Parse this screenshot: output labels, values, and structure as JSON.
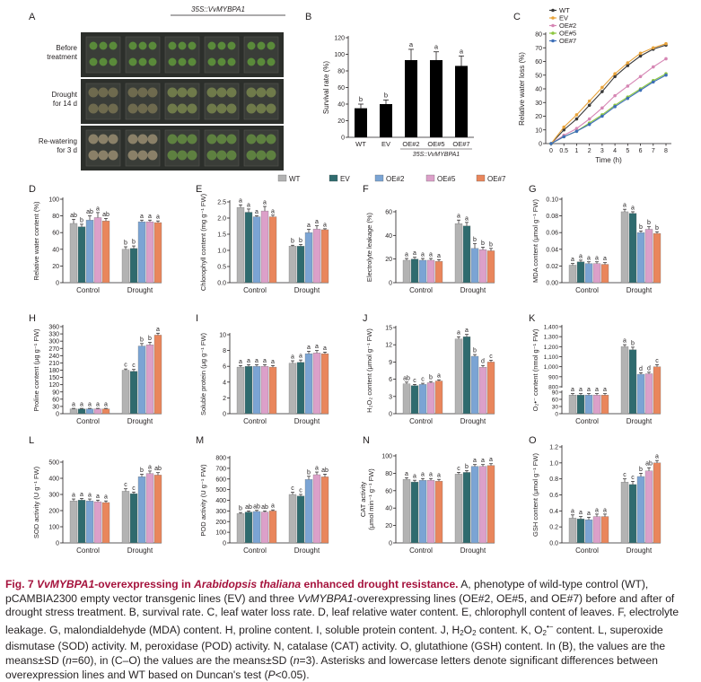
{
  "panel_a": {
    "letter": "A",
    "columns": [
      "WT",
      "EV",
      "OE#2",
      "OE#5",
      "OE#7"
    ],
    "transgene_label": "35S::VvMYBPA1",
    "rows": [
      "Before treatment",
      "Drought for 14 d",
      "Re-watering for 3 d"
    ]
  },
  "legend": {
    "series": [
      "WT",
      "EV",
      "OE#2",
      "OE#5",
      "OE#7"
    ],
    "colors": [
      "#b3b3b3",
      "#2f6b6e",
      "#7ba4d4",
      "#dca0c9",
      "#e9865c"
    ]
  },
  "chart_data": [
    {
      "letter": "B",
      "type": "bar",
      "categories": [
        "WT",
        "EV",
        "OE#2",
        "OE#5",
        "OE#7"
      ],
      "values": [
        35,
        40,
        93,
        93,
        86
      ],
      "errors": [
        5,
        5,
        13,
        10,
        12
      ],
      "letters": [
        "b",
        "b",
        "a",
        "a",
        "a"
      ],
      "ylabel": "Survival rate (%)",
      "ylim": [
        0,
        120
      ],
      "yticks": [
        "0",
        "20",
        "40",
        "60",
        "80",
        "100",
        "120"
      ],
      "group_label": "35S::VvMYBPA1",
      "bar_color": "#000000"
    },
    {
      "letter": "C",
      "type": "line",
      "x": [
        "0",
        "0.5",
        "1",
        "2",
        "3",
        "4",
        "5",
        "6",
        "7",
        "8"
      ],
      "xlabel": "Time (h)",
      "ylabel": "Relative water loss (%)",
      "ylim": [
        0,
        80
      ],
      "yticks": [
        "0",
        "10",
        "20",
        "30",
        "40",
        "50",
        "60",
        "70",
        "80"
      ],
      "series": [
        {
          "name": "WT",
          "color": "#3a3a3a",
          "values": [
            0,
            10,
            18,
            28,
            38,
            49,
            57,
            64,
            69,
            72
          ]
        },
        {
          "name": "EV",
          "color": "#e8a33a",
          "values": [
            0,
            12,
            21,
            31,
            41,
            51,
            59,
            66,
            70,
            73
          ]
        },
        {
          "name": "OE#2",
          "color": "#d686b4",
          "values": [
            0,
            6,
            11,
            18,
            26,
            35,
            42,
            49,
            56,
            62
          ]
        },
        {
          "name": "OE#5",
          "color": "#8cc63f",
          "values": [
            0,
            5,
            9,
            15,
            21,
            28,
            34,
            40,
            46,
            51
          ]
        },
        {
          "name": "OE#7",
          "color": "#3d6fb8",
          "values": [
            0,
            5,
            9,
            14,
            20,
            27,
            33,
            39,
            45,
            50
          ]
        }
      ]
    },
    {
      "letter": "D",
      "type": "bar",
      "ylabel": "Relative water content (%)",
      "ylim": [
        0,
        100
      ],
      "yticks": [
        "0",
        "20",
        "40",
        "60",
        "80",
        "100"
      ],
      "categories": [
        "Control",
        "Drought"
      ],
      "values": [
        [
          71,
          67,
          75,
          78,
          74
        ],
        [
          40,
          41,
          73,
          73,
          72
        ]
      ],
      "errors": [
        [
          5,
          3,
          5,
          6,
          3
        ],
        [
          3,
          3,
          2,
          2,
          2
        ]
      ],
      "letters": [
        [
          "ab",
          "b",
          "ab",
          "a",
          "ab"
        ],
        [
          "b",
          "b",
          "a",
          "a",
          "a"
        ]
      ]
    },
    {
      "letter": "E",
      "type": "bar",
      "ylabel": "Chlorophyll content (mg g⁻¹ FW)",
      "ylim": [
        0,
        2.5
      ],
      "yticks": [
        "0.0",
        "0.5",
        "1.0",
        "1.5",
        "2.0",
        "2.5"
      ],
      "categories": [
        "Control",
        "Drought"
      ],
      "values": [
        [
          2.33,
          2.18,
          2.04,
          2.22,
          2.04
        ],
        [
          1.13,
          1.13,
          1.55,
          1.66,
          1.64
        ]
      ],
      "errors": [
        [
          0.08,
          0.1,
          0.03,
          0.14,
          0.05
        ],
        [
          0.03,
          0.05,
          0.1,
          0.1,
          0.03
        ]
      ],
      "letters": [
        [
          "a",
          "a",
          "a",
          "a",
          "a"
        ],
        [
          "b",
          "b",
          "a",
          "a",
          "a"
        ]
      ]
    },
    {
      "letter": "F",
      "type": "bar",
      "ylabel": "Electrolyte leakage (%)",
      "ylim": [
        0,
        60
      ],
      "yticks": [
        "0",
        "20",
        "40",
        "60"
      ],
      "categories": [
        "Control",
        "Drought"
      ],
      "values": [
        [
          19,
          20,
          19,
          19,
          18
        ],
        [
          50,
          48,
          29,
          28,
          27
        ]
      ],
      "errors": [
        [
          1.5,
          1.5,
          1.5,
          1.5,
          1.5
        ],
        [
          3,
          3,
          4,
          2,
          2
        ]
      ],
      "letters": [
        [
          "a",
          "a",
          "a",
          "a",
          "a"
        ],
        [
          "a",
          "a",
          "b",
          "b",
          "b"
        ]
      ]
    },
    {
      "letter": "G",
      "type": "bar",
      "ylabel": "MDA content (μmol g⁻¹ FW)",
      "ylim": [
        0,
        0.1
      ],
      "yticks": [
        "0.00",
        "0.02",
        "0.04",
        "0.06",
        "0.08",
        "0.10"
      ],
      "categories": [
        "Control",
        "Drought"
      ],
      "values": [
        [
          0.021,
          0.025,
          0.023,
          0.023,
          0.022
        ],
        [
          0.085,
          0.083,
          0.06,
          0.064,
          0.059
        ]
      ],
      "errors": [
        [
          0.002,
          0.002,
          0.002,
          0.002,
          0.002
        ],
        [
          0.003,
          0.002,
          0.002,
          0.003,
          0.002
        ]
      ],
      "letters": [
        [
          "a",
          "a",
          "a",
          "a",
          "a"
        ],
        [
          "a",
          "a",
          "b",
          "b",
          "b"
        ]
      ]
    },
    {
      "letter": "H",
      "type": "bar",
      "ylabel": "Proline content (μg g⁻¹ FW)",
      "ylim": [
        0,
        360
      ],
      "yticks": [
        "0",
        "30",
        "60",
        "90",
        "120",
        "150",
        "180",
        "210",
        "240",
        "270",
        "300",
        "330",
        "360"
      ],
      "categories": [
        "Control",
        "Drought"
      ],
      "values": [
        [
          20,
          20,
          20,
          20,
          20
        ],
        [
          180,
          175,
          280,
          285,
          325
        ]
      ],
      "errors": [
        [
          2,
          2,
          2,
          2,
          2
        ],
        [
          5,
          8,
          10,
          10,
          8
        ]
      ],
      "letters": [
        [
          "a",
          "a",
          "a",
          "a",
          "a"
        ],
        [
          "c",
          "c",
          "b",
          "b",
          "a"
        ]
      ]
    },
    {
      "letter": "I",
      "type": "bar",
      "ylabel": "Soluble protein (μg g⁻¹ FW)",
      "ylim": [
        0,
        10
      ],
      "yticks": [
        "0",
        "2",
        "4",
        "6",
        "8",
        "10"
      ],
      "categories": [
        "Control",
        "Drought"
      ],
      "values": [
        [
          5.9,
          6.0,
          6.0,
          6.0,
          5.9
        ],
        [
          6.4,
          6.5,
          7.6,
          7.7,
          7.6
        ]
      ],
      "errors": [
        [
          0.2,
          0.2,
          0.2,
          0.2,
          0.2
        ],
        [
          0.3,
          0.3,
          0.3,
          0.3,
          0.2
        ]
      ],
      "letters": [
        [
          "a",
          "a",
          "a",
          "a",
          "a"
        ],
        [
          "a",
          "a",
          "a",
          "a",
          "a"
        ]
      ]
    },
    {
      "letter": "J",
      "type": "bar",
      "ylabel": "H₂O₂ content (μmol g⁻¹ FW)",
      "ylim": [
        0,
        15
      ],
      "yticks": [
        "0",
        "3",
        "6",
        "9",
        "12",
        "15"
      ],
      "categories": [
        "Control",
        "Drought"
      ],
      "values": [
        [
          5.2,
          4.9,
          5.1,
          5.4,
          5.7
        ],
        [
          13.0,
          13.4,
          10.0,
          8.1,
          9.0
        ]
      ],
      "errors": [
        [
          0.3,
          0.2,
          0.2,
          0.2,
          0.2
        ],
        [
          0.4,
          0.4,
          0.3,
          0.3,
          0.3
        ]
      ],
      "letters": [
        [
          "ab",
          "c",
          "c",
          "b",
          "a"
        ],
        [
          "a",
          "a",
          "b",
          "d",
          "c"
        ]
      ]
    },
    {
      "letter": "K",
      "type": "bar",
      "ylabel": "O₂•⁻ content (nmol g⁻¹ FW)",
      "ylim": [
        0,
        1400
      ],
      "broken_axis": true,
      "yticks": [
        "0",
        "30",
        "60",
        "90",
        "800",
        "900",
        "1,000",
        "1,100",
        "1,200",
        "1,300",
        "1,400"
      ],
      "categories": [
        "Control",
        "Drought"
      ],
      "values": [
        [
          78,
          78,
          78,
          78,
          78
        ],
        [
          1200,
          1170,
          925,
          930,
          1000
        ]
      ],
      "errors": [
        [
          6,
          6,
          6,
          6,
          6
        ],
        [
          20,
          25,
          15,
          15,
          20
        ]
      ],
      "letters": [
        [
          "a",
          "a",
          "a",
          "a",
          "a"
        ],
        [
          "a",
          "b",
          "d",
          "d",
          "c"
        ]
      ]
    },
    {
      "letter": "L",
      "type": "bar",
      "ylabel": "SOD activity (U g⁻¹ FW)",
      "ylim": [
        0,
        500
      ],
      "yticks": [
        "0",
        "100",
        "200",
        "300",
        "400",
        "500"
      ],
      "categories": [
        "Control",
        "Drought"
      ],
      "values": [
        [
          260,
          265,
          260,
          255,
          250
        ],
        [
          320,
          305,
          410,
          430,
          420
        ]
      ],
      "errors": [
        [
          12,
          10,
          12,
          10,
          10
        ],
        [
          15,
          10,
          15,
          15,
          15
        ]
      ],
      "letters": [
        [
          "a",
          "a",
          "a",
          "a",
          "a"
        ],
        [
          "c",
          "c",
          "b",
          "a",
          "ab"
        ]
      ]
    },
    {
      "letter": "M",
      "type": "bar",
      "ylabel": "POD activity (U g⁻¹ FW)",
      "ylim": [
        0,
        800
      ],
      "yticks": [
        "0",
        "100",
        "200",
        "300",
        "400",
        "500",
        "600",
        "700",
        "800"
      ],
      "categories": [
        "Control",
        "Drought"
      ],
      "values": [
        [
          275,
          290,
          295,
          290,
          300
        ],
        [
          455,
          440,
          595,
          640,
          620
        ]
      ],
      "errors": [
        [
          10,
          10,
          10,
          10,
          10
        ],
        [
          20,
          15,
          30,
          25,
          25
        ]
      ],
      "letters": [
        [
          "b",
          "ab",
          "ab",
          "ab",
          "a"
        ],
        [
          "c",
          "c",
          "b",
          "a",
          "ab"
        ]
      ]
    },
    {
      "letter": "N",
      "type": "bar",
      "ylabel": "CAT activity (μmol min⁻¹ g⁻¹ FW)",
      "ylabel_lines": [
        "CAT activity",
        "(μmol min⁻¹ g⁻¹ FW)"
      ],
      "ylim": [
        0,
        100
      ],
      "yticks": [
        "0",
        "20",
        "40",
        "60",
        "80",
        "100"
      ],
      "categories": [
        "Control",
        "Drought"
      ],
      "values": [
        [
          73,
          70,
          72,
          72,
          71
        ],
        [
          79,
          81,
          88,
          88,
          89
        ]
      ],
      "errors": [
        [
          2,
          2,
          2,
          2,
          2
        ],
        [
          2,
          2,
          2,
          2,
          2
        ]
      ],
      "letters": [
        [
          "a",
          "a",
          "a",
          "a",
          "a"
        ],
        [
          "c",
          "b",
          "a",
          "a",
          "a"
        ]
      ]
    },
    {
      "letter": "O",
      "type": "bar",
      "ylabel": "GSH content (μmol g⁻¹ FW)",
      "ylim": [
        0,
        1.2
      ],
      "yticks": [
        "0.0",
        "0.2",
        "0.4",
        "0.6",
        "0.8",
        "1.0",
        "1.2"
      ],
      "categories": [
        "Control",
        "Drought"
      ],
      "values": [
        [
          0.31,
          0.3,
          0.29,
          0.33,
          0.33
        ],
        [
          0.76,
          0.73,
          0.83,
          0.9,
          1.0
        ]
      ],
      "errors": [
        [
          0.04,
          0.03,
          0.03,
          0.03,
          0.03
        ],
        [
          0.04,
          0.04,
          0.04,
          0.04,
          0.03
        ]
      ],
      "letters": [
        [
          "a",
          "a",
          "a",
          "a",
          "a"
        ],
        [
          "c",
          "c",
          "b",
          "ab",
          "a"
        ]
      ]
    }
  ],
  "caption": {
    "label": "Fig. 7",
    "title_parts": [
      "VvMYBPA1",
      "-overexpressing in ",
      "Arabidopsis thaliana",
      " enhanced drought resistance."
    ],
    "t1": " A, phenotype of wild-type control (WT), pCAMBIA2300 empty vector transgenic lines (EV) and three ",
    "t1_gene": "VvMYBPA1",
    "t2": "-overexpressing lines (OE#2, OE#5, and OE#7) before and after of drought stress treatment. B, survival rate. C, leaf water loss rate. D, leaf relative water content. E, chlorophyll content of leaves. F, electrolyte leakage. G, malondialdehyde (MDA) content. H, proline content. I, soluble protein content. J, H",
    "t3": "O",
    "t4": " content. K, O",
    "t5": " content. L, superoxide dismutase (SOD) activity. M, peroxidase (POD) activity. N, catalase (CAT) activity. O, glutathione (GSH) content. In (B), the values are the means±SD (",
    "n60": "n",
    "t6": "=60), in (C–O) the values are the means±SD (",
    "n3": "n",
    "t7": "=3). Asterisks and lowercase letters denote significant differences between overexpression lines and WT based on Duncan's test (",
    "p": "P",
    "t8": "<0.05)."
  }
}
